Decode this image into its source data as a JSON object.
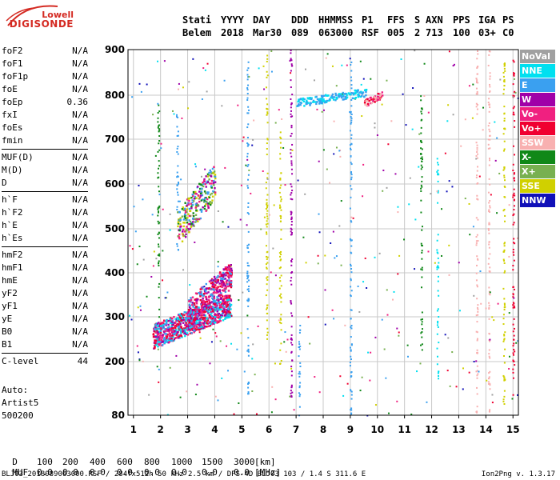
{
  "logo": {
    "line1": "Lowell",
    "line2": "DIGISONDE"
  },
  "header": {
    "row1": [
      "Stati",
      "YYYY",
      "DAY",
      "DDD",
      "HHMMSS",
      "P1",
      "FFS",
      "S",
      "AXN",
      "PPS",
      "IGA",
      "PS"
    ],
    "row2": [
      "Belem",
      "2018",
      "Mar30",
      "089",
      "063000",
      "RSF",
      "005",
      "2",
      "713",
      "100",
      "03+",
      "C0"
    ]
  },
  "params": [
    {
      "name": "foF2",
      "value": "N/A"
    },
    {
      "name": "foF1",
      "value": "N/A"
    },
    {
      "name": "foF1p",
      "value": "N/A"
    },
    {
      "name": "foE",
      "value": "N/A"
    },
    {
      "name": "foEp",
      "value": "0.36"
    },
    {
      "name": "fxI",
      "value": "N/A"
    },
    {
      "name": "foEs",
      "value": "N/A"
    },
    {
      "name": "fmin",
      "value": "N/A"
    },
    {
      "sep": true
    },
    {
      "name": "MUF(D)",
      "value": "N/A"
    },
    {
      "name": "M(D)",
      "value": "N/A"
    },
    {
      "name": "D",
      "value": "N/A"
    },
    {
      "sep": true
    },
    {
      "name": "h`F",
      "value": "N/A"
    },
    {
      "name": "h`F2",
      "value": "N/A"
    },
    {
      "name": "h`E",
      "value": "N/A"
    },
    {
      "name": "h`Es",
      "value": "N/A"
    },
    {
      "sep": true
    },
    {
      "name": "hmF2",
      "value": "N/A"
    },
    {
      "name": "hmF1",
      "value": "N/A"
    },
    {
      "name": "hmE",
      "value": "N/A"
    },
    {
      "name": "yF2",
      "value": "N/A"
    },
    {
      "name": "yF1",
      "value": "N/A"
    },
    {
      "name": "yE",
      "value": "N/A"
    },
    {
      "name": "B0",
      "value": "N/A"
    },
    {
      "name": "B1",
      "value": "N/A"
    },
    {
      "sep": true
    },
    {
      "name": "C-level",
      "value": "44"
    }
  ],
  "auto": {
    "line1": "Auto:",
    "line2": "Artist5",
    "line3": "500200"
  },
  "legend": [
    {
      "label": "NoVal",
      "color": "#a0a0a0"
    },
    {
      "label": "NNE",
      "color": "#00e0f0"
    },
    {
      "label": "E",
      "color": "#3aa0f0"
    },
    {
      "label": "W",
      "color": "#a000a8"
    },
    {
      "label": "Vo-",
      "color": "#f02080"
    },
    {
      "label": "Vo+",
      "color": "#f00030"
    },
    {
      "label": "SSW",
      "color": "#f8b0b0"
    },
    {
      "label": "X-",
      "color": "#108818"
    },
    {
      "label": "X+",
      "color": "#78b050"
    },
    {
      "label": "SSE",
      "color": "#d0d000"
    },
    {
      "label": "NNW",
      "color": "#1010b8"
    }
  ],
  "footer": {
    "d_label": "D",
    "d_values": [
      "100",
      "200",
      "400",
      "600",
      "800",
      "1000",
      "1500",
      "3000"
    ],
    "d_unit": "[km]",
    "muf_label": "MUF",
    "muf_values": [
      "0.0",
      "0.0",
      "0.0",
      "0.0",
      "0.0",
      "0.0",
      "0.0",
      "0.0"
    ],
    "muf_unit": "[MHz]",
    "fileinfo": "BLJ03_2018089063000.RSF / 284fx512h 50 kHz 2.5 km / DPS-4D BLJ03 103 / 1.4 S 311.6 E",
    "version": "Ion2Png v. 1.3.17"
  },
  "chart_data": {
    "type": "scatter",
    "x_ticks": [
      1,
      2,
      3,
      4,
      5,
      6,
      7,
      8,
      9,
      10,
      11,
      12,
      13,
      14,
      15
    ],
    "y_ticks": [
      80,
      200,
      300,
      400,
      500,
      600,
      700,
      800,
      900
    ],
    "xlim": [
      0.8,
      15.2
    ],
    "ylim": [
      80,
      900
    ],
    "grid": true,
    "xlabel": "",
    "ylabel": "",
    "clusters": [
      {
        "name": "F-trace main",
        "colors": [
          "#f00030",
          "#f02080",
          "#a000a8",
          "#3aa0f0",
          "#00e0f0"
        ],
        "x": [
          1.7,
          4.6
        ],
        "y": [
          230,
          350
        ],
        "density": 900
      },
      {
        "name": "F-trace upper",
        "colors": [
          "#f00030",
          "#a000a8",
          "#3aa0f0",
          "#f02080"
        ],
        "x": [
          3.0,
          4.6
        ],
        "y": [
          280,
          420
        ],
        "density": 350
      },
      {
        "name": "2F echo",
        "colors": [
          "#3aa0f0",
          "#108818",
          "#78b050",
          "#a000a8",
          "#f02080",
          "#d0d000"
        ],
        "x": [
          2.6,
          4.0
        ],
        "y": [
          460,
          640
        ],
        "density": 260
      },
      {
        "name": "interference 800km",
        "colors": [
          "#3aa0f0",
          "#00e0f0"
        ],
        "x": [
          7.0,
          9.6
        ],
        "y": [
          775,
          815
        ],
        "density": 170
      },
      {
        "name": "interference 800km red",
        "colors": [
          "#f00030",
          "#f02080",
          "#f8b0b0"
        ],
        "x": [
          9.5,
          10.2
        ],
        "y": [
          775,
          810
        ],
        "density": 60
      }
    ],
    "vertical_lines": [
      {
        "x": 7.1,
        "y": [
          80,
          300
        ],
        "color": "#3aa0f0"
      },
      {
        "x": 6.4,
        "y": [
          180,
          720
        ],
        "color": "#d0d000"
      },
      {
        "x": 5.9,
        "y": [
          240,
          900
        ],
        "color": "#d0d000"
      },
      {
        "x": 13.65,
        "y": [
          80,
          900
        ],
        "color": "#f8b0b0"
      },
      {
        "x": 14.65,
        "y": [
          100,
          900
        ],
        "color": "#d0d000"
      },
      {
        "x": 9.0,
        "y": [
          80,
          900
        ],
        "color": "#3aa0f0"
      },
      {
        "x": 5.2,
        "y": [
          120,
          900
        ],
        "color": "#3aa0f0"
      },
      {
        "x": 14.1,
        "y": [
          80,
          900
        ],
        "color": "#f8b0b0"
      },
      {
        "x": 11.6,
        "y": [
          200,
          800
        ],
        "color": "#108818"
      },
      {
        "x": 2.6,
        "y": [
          440,
          760
        ],
        "color": "#3aa0f0"
      },
      {
        "x": 1.9,
        "y": [
          300,
          790
        ],
        "color": "#108818"
      },
      {
        "x": 6.8,
        "y": [
          120,
          900
        ],
        "color": "#a000a8"
      },
      {
        "x": 12.2,
        "y": [
          150,
          660
        ],
        "color": "#00e0f0"
      },
      {
        "x": 15.0,
        "y": [
          100,
          880
        ],
        "color": "#f00030"
      }
    ]
  }
}
